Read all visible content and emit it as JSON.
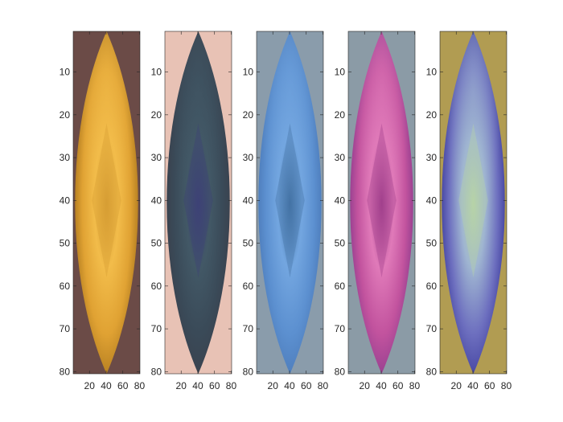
{
  "chart_data": {
    "type": "heatmap",
    "layout": "1x5 image subplots",
    "images": [
      {
        "name": "yellow",
        "border": "#6b4b47",
        "colors": {
          "edge": "#a8741c",
          "mid": "#e0a233",
          "core": "#f2bc4a",
          "center": "#d39a32"
        },
        "xlim": [
          0.5,
          80.5
        ],
        "ylim": [
          0.5,
          80.5
        ],
        "xticks": [
          20,
          40,
          60,
          80
        ],
        "yticks": [
          10,
          20,
          30,
          40,
          50,
          60,
          70,
          80
        ]
      },
      {
        "name": "dark-teal",
        "border": "#e8c2b5",
        "colors": {
          "edge": "#3a404c",
          "mid": "#3a4a58",
          "core": "#425866",
          "center": "#3d3f78"
        },
        "xlim": [
          0.5,
          80.5
        ],
        "ylim": [
          0.5,
          80.5
        ],
        "xticks": [
          20,
          40,
          60,
          80
        ],
        "yticks": [
          10,
          20,
          30,
          40,
          50,
          60,
          70,
          80
        ]
      },
      {
        "name": "blue",
        "border": "#8a9cab",
        "colors": {
          "edge": "#4a78b6",
          "mid": "#5c90d0",
          "core": "#73a6e0",
          "center": "#3e6d9e"
        },
        "xlim": [
          0.5,
          80.5
        ],
        "ylim": [
          0.5,
          80.5
        ],
        "xticks": [
          20,
          40,
          60,
          80
        ],
        "yticks": [
          10,
          20,
          30,
          40,
          50,
          60,
          70,
          80
        ]
      },
      {
        "name": "magenta",
        "border": "#8b9ba6",
        "colors": {
          "edge": "#8a3a8c",
          "mid": "#c2539e",
          "core": "#e07ab9",
          "center": "#9a3a88"
        },
        "xlim": [
          0.5,
          80.5
        ],
        "ylim": [
          0.5,
          80.5
        ],
        "xticks": [
          20,
          40,
          60,
          80
        ],
        "yticks": [
          10,
          20,
          30,
          40,
          50,
          60,
          70,
          80
        ]
      },
      {
        "name": "purple-green",
        "border": "#b19c52",
        "colors": {
          "edge": "#3b3a9a",
          "mid": "#6d6fbf",
          "core": "#9fb5d1",
          "center": "#b9d6a2"
        },
        "xlim": [
          0.5,
          80.5
        ],
        "ylim": [
          0.5,
          80.5
        ],
        "xticks": [
          20,
          40,
          60,
          80
        ],
        "yticks": [
          10,
          20,
          30,
          40,
          50,
          60,
          70,
          80
        ]
      }
    ]
  }
}
